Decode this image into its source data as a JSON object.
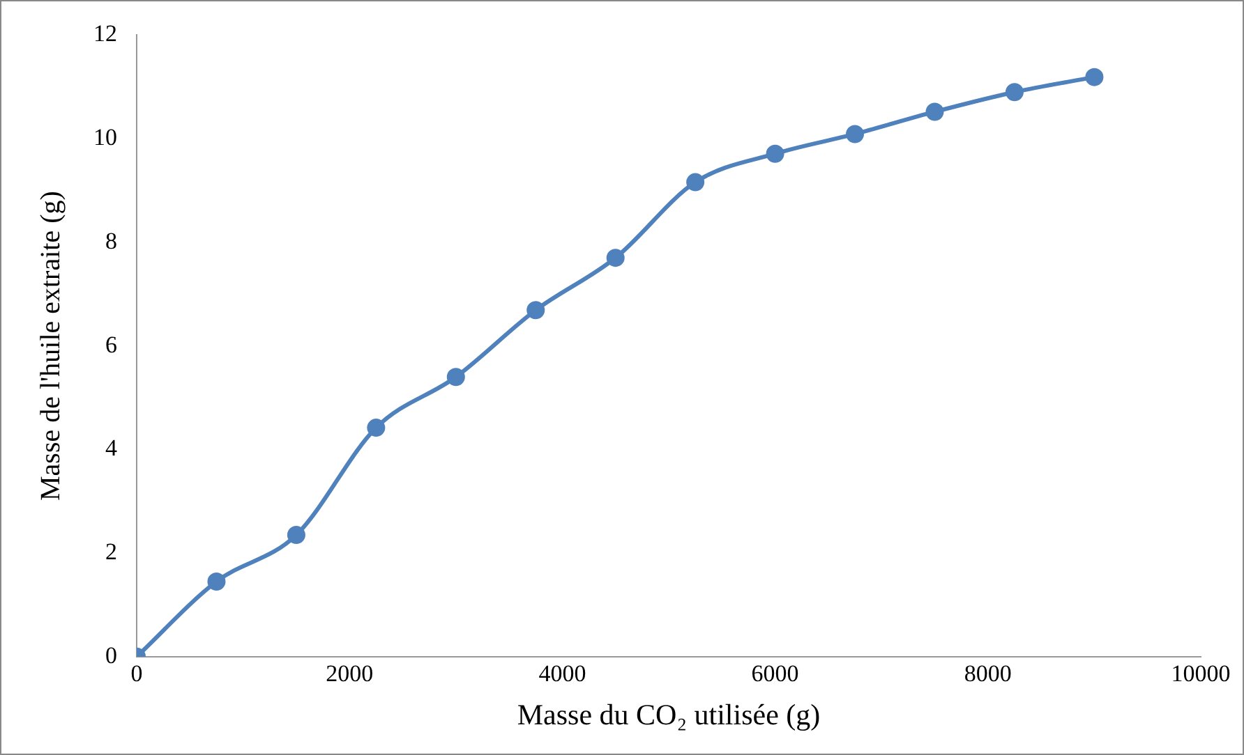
{
  "chart_data": {
    "type": "line",
    "xlabel": "Masse du CO₂ utilisée (g)",
    "ylabel": "Masse de l'huile extraite (g)",
    "x": [
      0,
      750,
      1500,
      2250,
      3000,
      3750,
      4500,
      5250,
      6000,
      6750,
      7500,
      8250,
      9000
    ],
    "series": [
      {
        "color": "#4f81bd",
        "values": [
          0,
          1.45,
          2.35,
          4.42,
          5.4,
          6.69,
          7.7,
          9.16,
          9.71,
          10.09,
          10.52,
          10.9,
          11.19
        ]
      }
    ],
    "xlim": [
      0,
      10000
    ],
    "xticks": [
      0,
      2000,
      4000,
      6000,
      8000,
      10000
    ],
    "ylim": [
      0,
      12
    ],
    "yticks": [
      0,
      2,
      4,
      6,
      8,
      10,
      12
    ],
    "grid": false,
    "legend": false,
    "marker": "circle",
    "line_style": "solid"
  }
}
